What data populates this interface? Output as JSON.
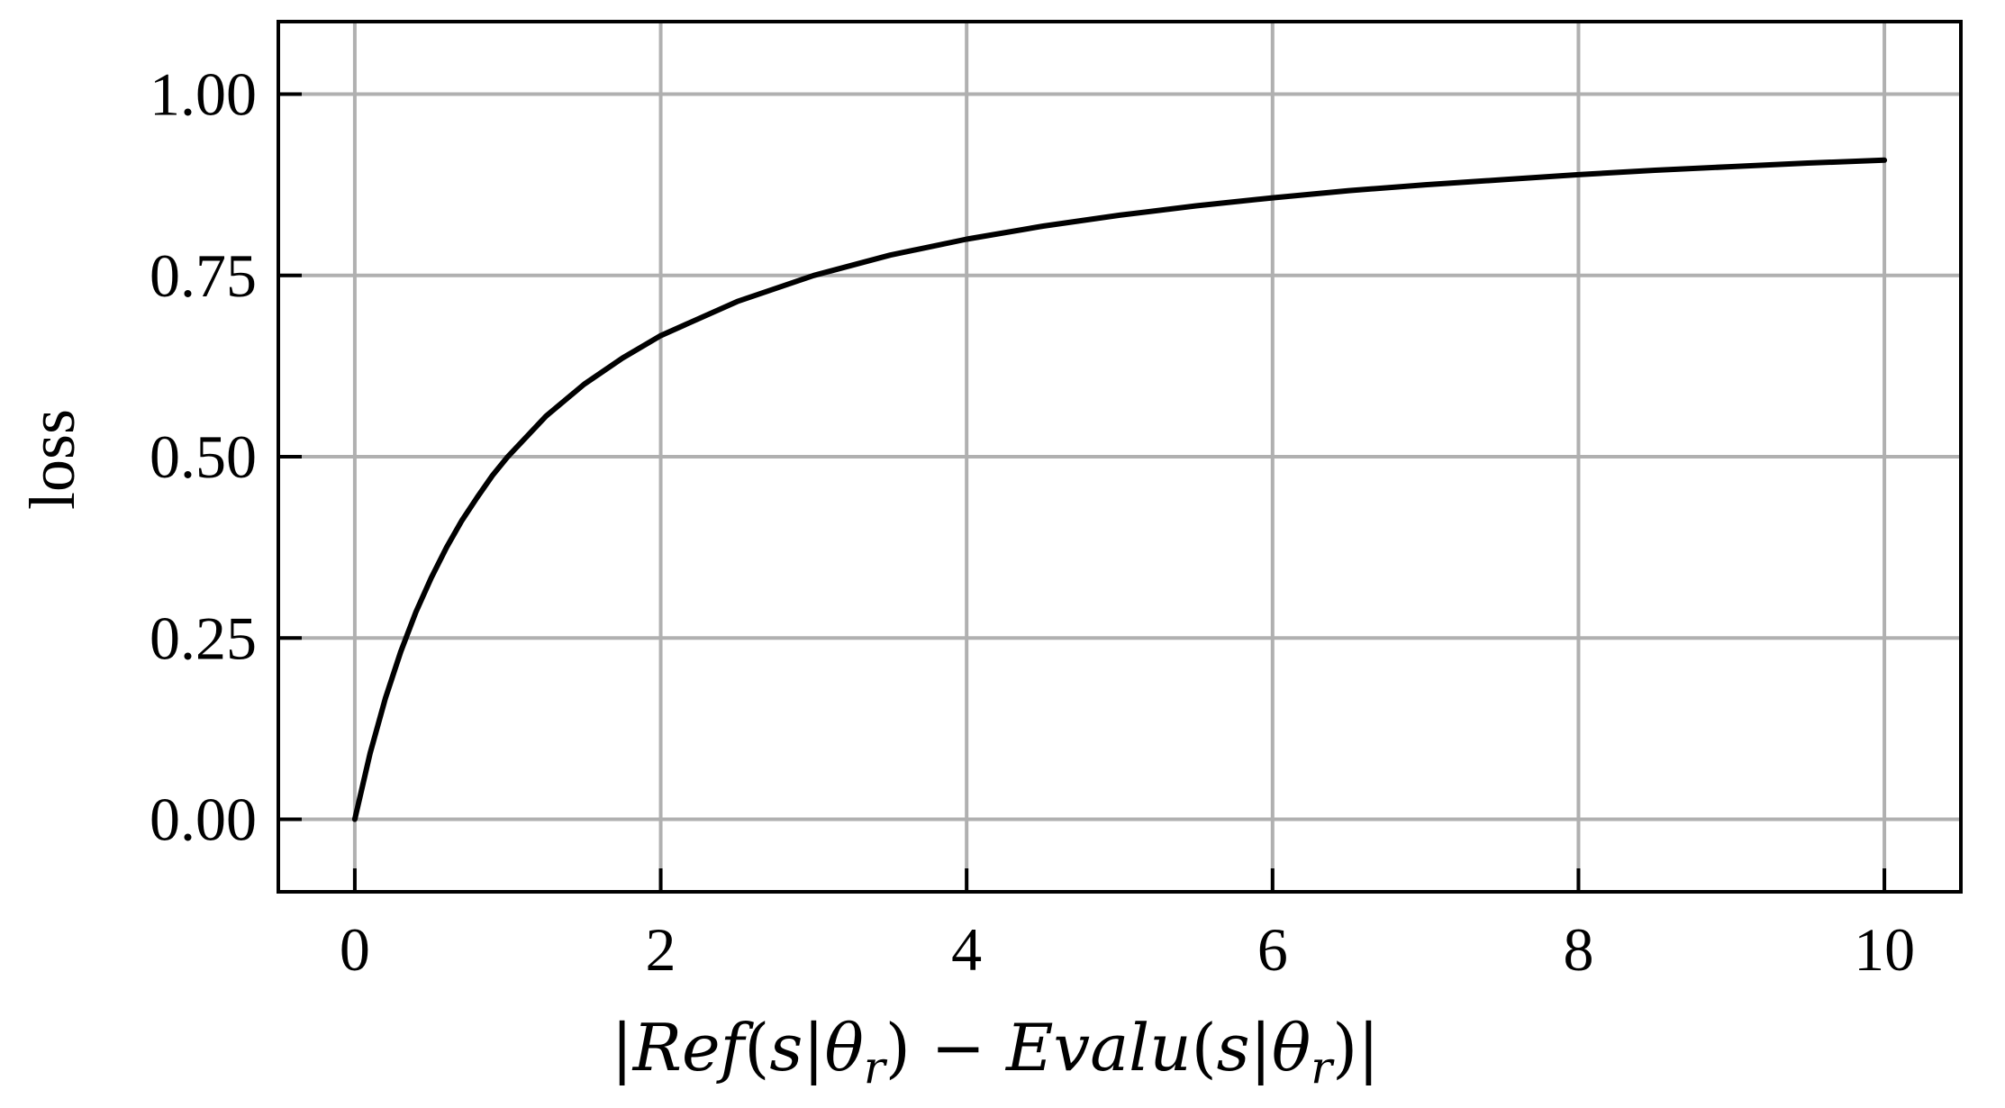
{
  "chart_data": {
    "type": "line",
    "title": "",
    "xlabel": "|Ref(s|θ_r) − Evalu(s|θ_r)|",
    "xlabel_display": "|Ref(s|θr) − Evalu(s|θr)|",
    "ylabel": "loss",
    "xlim": [
      -0.5,
      10.5
    ],
    "ylim": [
      -0.1,
      1.1
    ],
    "x_ticks": [
      0,
      2,
      4,
      6,
      8,
      10
    ],
    "x_tick_labels": [
      "0",
      "2",
      "4",
      "6",
      "8",
      "10"
    ],
    "y_ticks": [
      0.0,
      0.25,
      0.5,
      0.75,
      1.0
    ],
    "y_tick_labels": [
      "0.00",
      "0.25",
      "0.50",
      "0.75",
      "1.00"
    ],
    "grid": true,
    "line_color": "#000000",
    "grid_color": "#b0b0b0",
    "series": [
      {
        "x": [
          0,
          0.1,
          0.2,
          0.3,
          0.4,
          0.5,
          0.6,
          0.7,
          0.8,
          0.9,
          1.0,
          1.25,
          1.5,
          1.75,
          2.0,
          2.5,
          3.0,
          3.5,
          4.0,
          4.5,
          5.0,
          5.5,
          6.0,
          6.5,
          7.0,
          7.5,
          8.0,
          8.5,
          9.0,
          9.5,
          10.0
        ],
        "y": [
          0.0,
          0.091,
          0.167,
          0.231,
          0.286,
          0.333,
          0.375,
          0.412,
          0.444,
          0.474,
          0.5,
          0.556,
          0.6,
          0.636,
          0.667,
          0.714,
          0.75,
          0.778,
          0.8,
          0.818,
          0.833,
          0.846,
          0.857,
          0.867,
          0.875,
          0.882,
          0.889,
          0.895,
          0.9,
          0.905,
          0.909
        ]
      }
    ]
  }
}
